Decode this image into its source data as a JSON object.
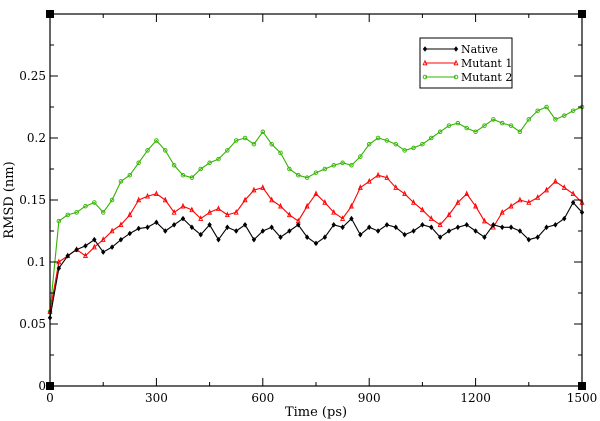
{
  "chart_data": {
    "type": "line",
    "xlabel": "Time (ps)",
    "ylabel": "RMSD (nm)",
    "xlim": [
      0,
      1500
    ],
    "ylim": [
      0,
      0.3
    ],
    "x_ticks": [
      "0",
      "300",
      "600",
      "900",
      "1200",
      "1500"
    ],
    "y_ticks": [
      "0",
      "0.05",
      "0.1",
      "0.15",
      "0.2",
      "0.25"
    ],
    "grid": false,
    "legend_position": "top-right",
    "x": [
      0,
      25,
      50,
      75,
      100,
      125,
      150,
      175,
      200,
      225,
      250,
      275,
      300,
      325,
      350,
      375,
      400,
      425,
      450,
      475,
      500,
      525,
      550,
      575,
      600,
      625,
      650,
      675,
      700,
      725,
      750,
      775,
      800,
      825,
      850,
      875,
      900,
      925,
      950,
      975,
      1000,
      1025,
      1050,
      1075,
      1100,
      1125,
      1150,
      1175,
      1200,
      1225,
      1250,
      1275,
      1300,
      1325,
      1350,
      1375,
      1400,
      1425,
      1450,
      1475,
      1500
    ],
    "series": [
      {
        "name": "Native",
        "color": "#000000",
        "marker": "diamond",
        "values": [
          0.055,
          0.095,
          0.105,
          0.11,
          0.113,
          0.118,
          0.108,
          0.112,
          0.118,
          0.123,
          0.127,
          0.128,
          0.132,
          0.125,
          0.13,
          0.135,
          0.128,
          0.122,
          0.13,
          0.118,
          0.128,
          0.125,
          0.13,
          0.118,
          0.125,
          0.128,
          0.12,
          0.125,
          0.13,
          0.12,
          0.115,
          0.12,
          0.13,
          0.128,
          0.135,
          0.122,
          0.128,
          0.125,
          0.13,
          0.128,
          0.122,
          0.125,
          0.13,
          0.128,
          0.12,
          0.125,
          0.128,
          0.13,
          0.125,
          0.12,
          0.13,
          0.128,
          0.128,
          0.125,
          0.118,
          0.12,
          0.128,
          0.13,
          0.135,
          0.148,
          0.14
        ]
      },
      {
        "name": "Mutant 1",
        "color": "#ff0000",
        "marker": "triangle",
        "values": [
          0.06,
          0.1,
          0.105,
          0.11,
          0.105,
          0.112,
          0.118,
          0.125,
          0.13,
          0.138,
          0.15,
          0.153,
          0.155,
          0.15,
          0.14,
          0.145,
          0.142,
          0.135,
          0.14,
          0.143,
          0.138,
          0.14,
          0.15,
          0.158,
          0.16,
          0.15,
          0.145,
          0.138,
          0.133,
          0.145,
          0.155,
          0.148,
          0.14,
          0.135,
          0.145,
          0.16,
          0.165,
          0.17,
          0.168,
          0.16,
          0.155,
          0.148,
          0.142,
          0.135,
          0.13,
          0.138,
          0.148,
          0.155,
          0.145,
          0.133,
          0.128,
          0.14,
          0.145,
          0.15,
          0.148,
          0.152,
          0.158,
          0.165,
          0.16,
          0.155,
          0.148
        ]
      },
      {
        "name": "Mutant 2",
        "color": "#32b400",
        "marker": "circle",
        "values": [
          0.06,
          0.133,
          0.138,
          0.14,
          0.145,
          0.148,
          0.14,
          0.15,
          0.165,
          0.17,
          0.18,
          0.19,
          0.198,
          0.19,
          0.178,
          0.17,
          0.168,
          0.175,
          0.18,
          0.183,
          0.19,
          0.198,
          0.2,
          0.195,
          0.205,
          0.195,
          0.188,
          0.175,
          0.17,
          0.168,
          0.172,
          0.175,
          0.178,
          0.18,
          0.178,
          0.185,
          0.195,
          0.2,
          0.198,
          0.195,
          0.19,
          0.192,
          0.195,
          0.2,
          0.205,
          0.21,
          0.212,
          0.208,
          0.205,
          0.21,
          0.215,
          0.212,
          0.21,
          0.205,
          0.215,
          0.222,
          0.225,
          0.215,
          0.218,
          0.222,
          0.225
        ]
      }
    ]
  }
}
